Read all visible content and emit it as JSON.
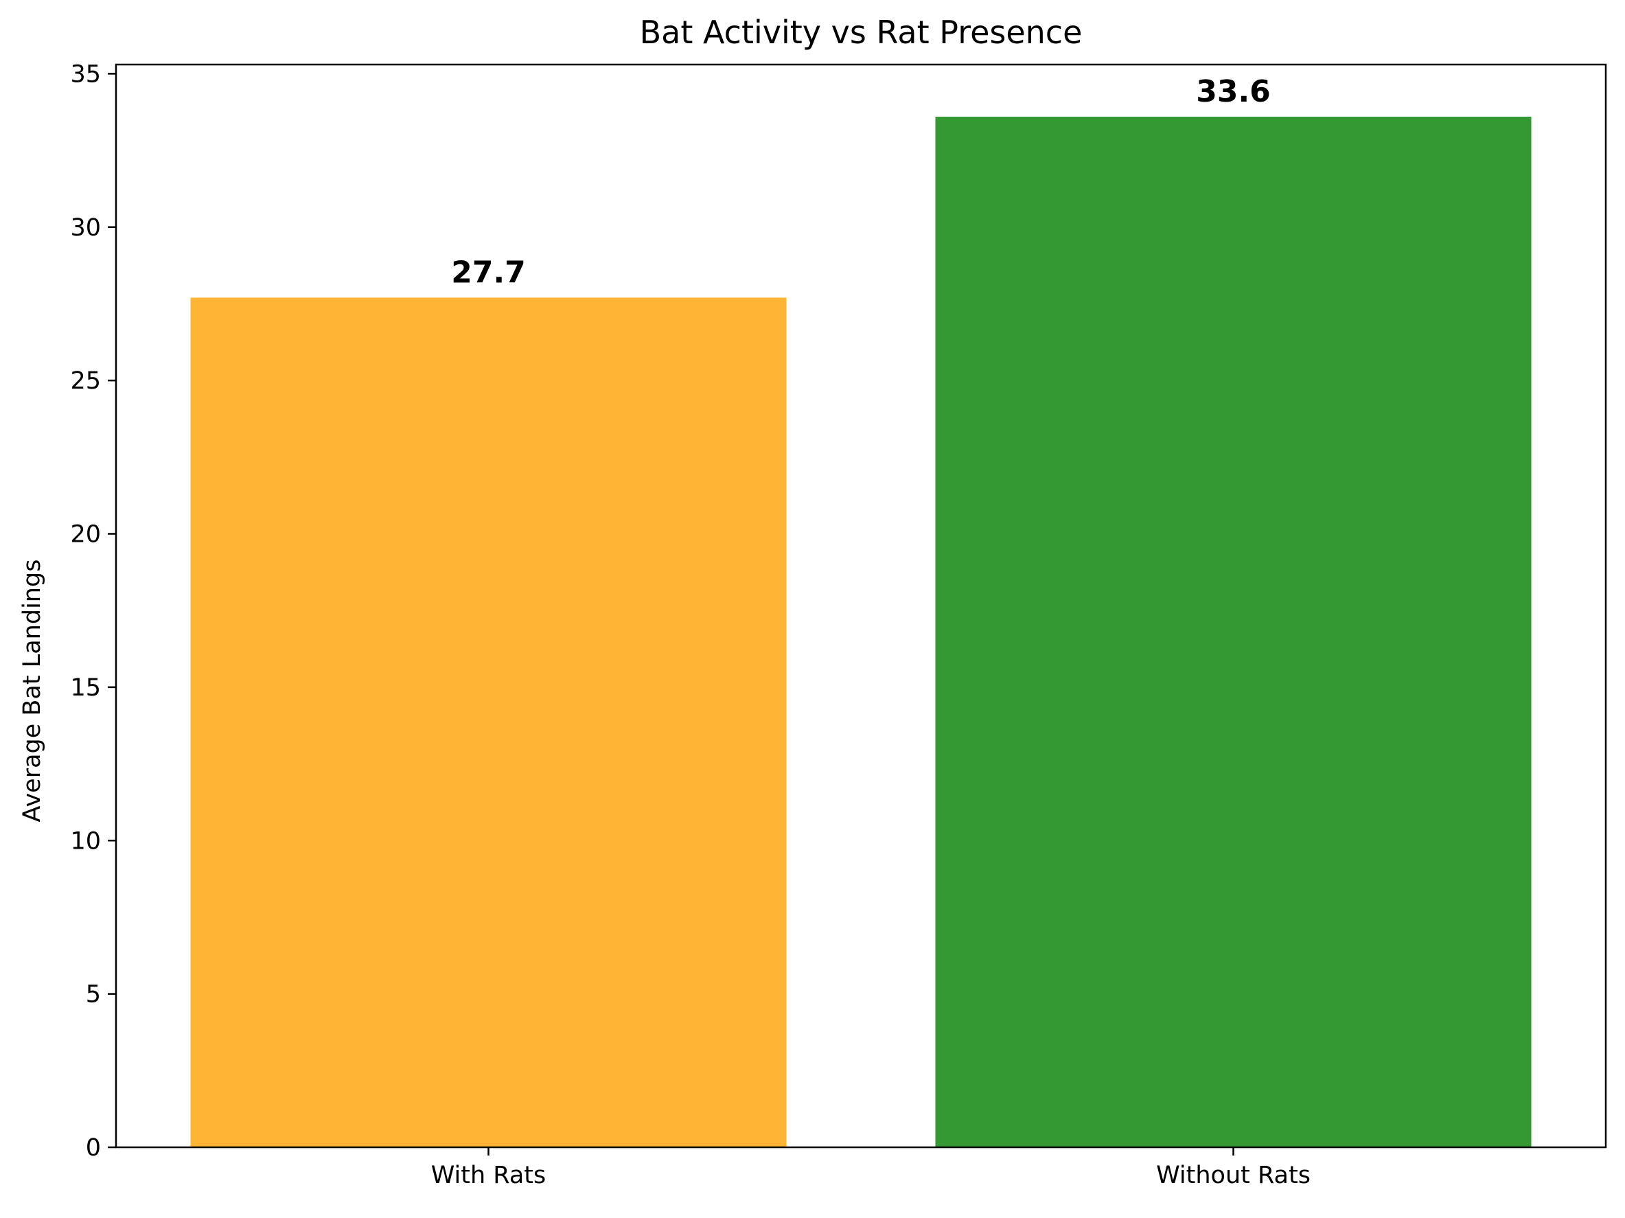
{
  "chart_data": {
    "type": "bar",
    "title": "Bat Activity vs Rat Presence",
    "xlabel": "",
    "ylabel": "Average Bat Landings",
    "categories": [
      "With Rats",
      "Without Rats"
    ],
    "values": [
      27.7,
      33.6
    ],
    "value_labels": [
      "27.7",
      "33.6"
    ],
    "colors": [
      "#FFB533",
      "#349933"
    ],
    "ylim": [
      0,
      35.3
    ],
    "yticks": [
      0,
      5,
      10,
      15,
      20,
      25,
      30,
      35
    ],
    "ytick_labels": [
      "0",
      "5",
      "10",
      "15",
      "20",
      "25",
      "30",
      "35"
    ],
    "grid": false,
    "legend": null
  }
}
